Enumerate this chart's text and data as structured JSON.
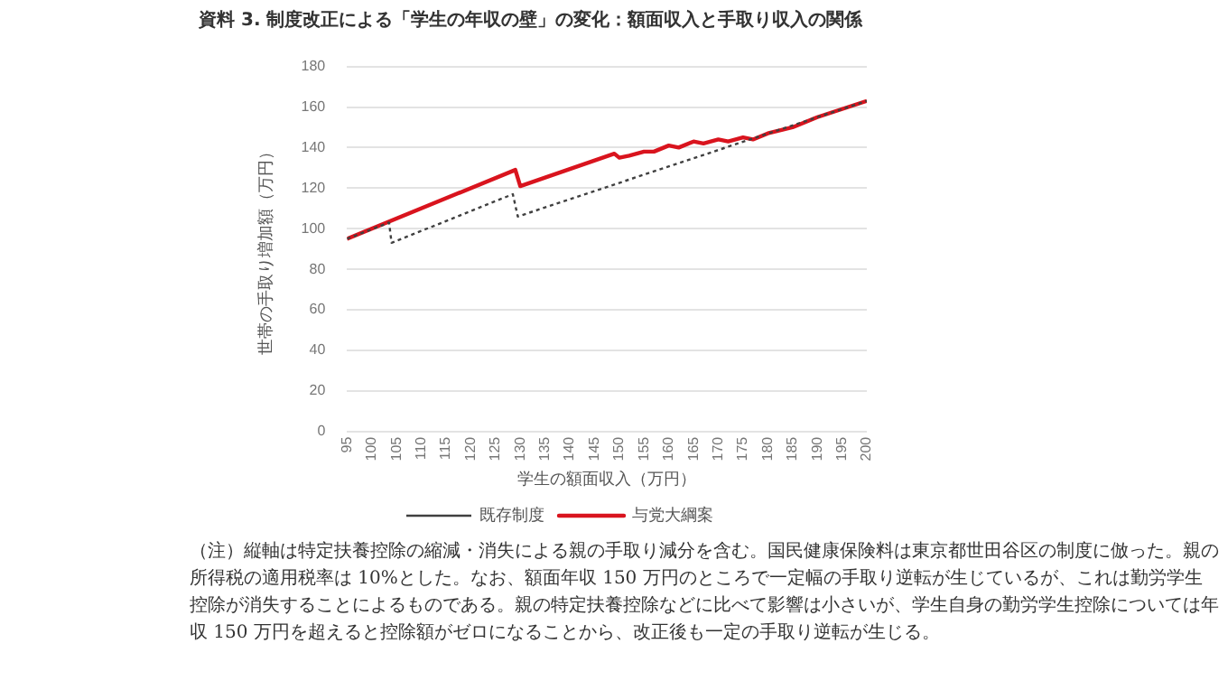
{
  "chart_data": {
    "type": "line",
    "title": "資料 3.  制度改正による「学生の年収の壁」の変化：額面収入と手取り収入の関係",
    "xlabel": "学生の額面収入（万円）",
    "ylabel": "世帯の手取り増加額（万円）",
    "xlim": [
      95,
      200
    ],
    "xticks": [
      95,
      100,
      105,
      110,
      115,
      120,
      125,
      130,
      135,
      140,
      145,
      150,
      155,
      160,
      165,
      170,
      175,
      180,
      185,
      190,
      195,
      200
    ],
    "ylim": [
      0,
      180
    ],
    "yticks": [
      0,
      20,
      40,
      60,
      80,
      100,
      120,
      140,
      160,
      180
    ],
    "grid": "y",
    "legend": "bottom",
    "marker": "none",
    "series": [
      {
        "name": "既存制度",
        "color": "#404040",
        "line_style": "dotted",
        "x": [
          95,
          103.5,
          104,
          128.5,
          129.5,
          190,
          200
        ],
        "values": [
          95,
          103,
          93,
          117,
          106,
          155,
          163
        ]
      },
      {
        "name": "与党大綱案",
        "color": "#d9141e",
        "line_style": "solid",
        "x": [
          95,
          129,
          130,
          149,
          150,
          152,
          155,
          157,
          160,
          162,
          165,
          167,
          170,
          172,
          175,
          177,
          180,
          185,
          190,
          195,
          200
        ],
        "values": [
          95,
          129,
          121,
          137,
          135,
          136,
          138,
          138,
          141,
          140,
          143,
          142,
          144,
          143,
          145,
          144,
          147,
          150,
          155,
          159,
          163
        ]
      }
    ],
    "annotations": [
      "（注）縦軸は特定扶養控除の縮減・消失による親の手取り減分を含む。国民健康保険料は東京都世田谷区の制度に倣った。親の所得税の適用税率は 10%とした。なお、額面年収 150 万円のところで一定幅の手取り逆転が生じているが、これは勤労学生控除が消失することによるものである。親の特定扶養控除などに比べて影響は小さいが、学生自身の勤労学生控除については年収 150 万円を超えると控除額がゼロになることから、改正後も一定の手取り逆転が生じる。"
    ]
  }
}
